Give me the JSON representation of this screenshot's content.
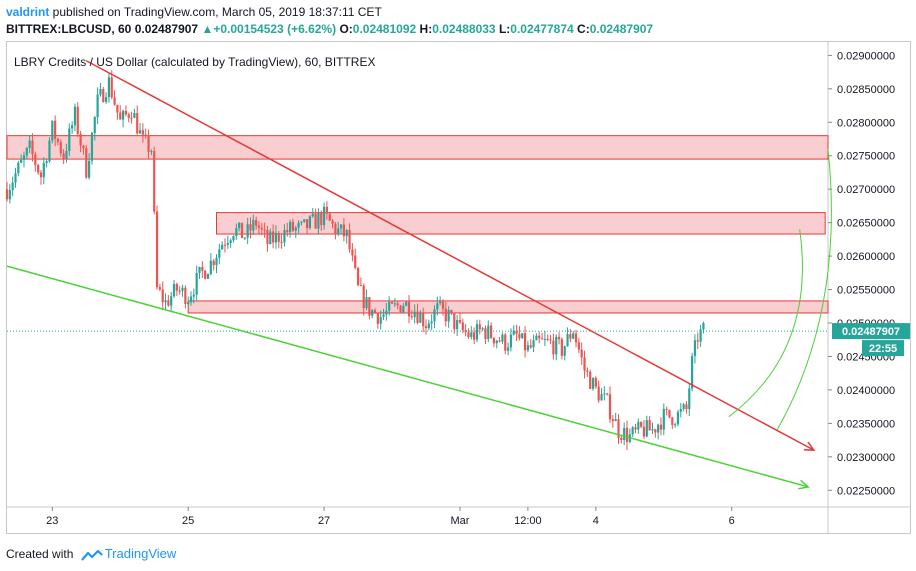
{
  "header": {
    "author": "valdrint",
    "published_text": " published on TradingView.com, March 05, 2019 18:37:11 CET",
    "symbol": "BITTREX:LBCUSD, 60",
    "last": "0.02487907",
    "change": "+0.00154523 (+6.62%)",
    "open_label": "O:",
    "open": "0.02481092",
    "high_label": "H:",
    "high": "0.02488033",
    "low_label": "L:",
    "low": "0.02477874",
    "close_label": "C:",
    "close": "0.02487907"
  },
  "chart_title": "LBRY Credits / US Dollar (calculated by TradingView), 60, BITTREX",
  "footer": {
    "created_with": "Created with",
    "brand": "TradingView"
  },
  "colors": {
    "up": "#26a69a",
    "down": "#ef5350",
    "resistance": "#e53935",
    "support": "#4cd137",
    "zone_fill": "#f8c6c8",
    "accent": "#2196f3"
  },
  "chart_data": {
    "type": "candlestick",
    "y_range": [
      0.02225,
      0.0292
    ],
    "y_ticks": [
      "0.02250000",
      "0.02300000",
      "0.02350000",
      "0.02400000",
      "0.02450000",
      "0.02500000",
      "0.02550000",
      "0.02600000",
      "0.02650000",
      "0.02700000",
      "0.02750000",
      "0.02800000",
      "0.02850000",
      "0.02900000"
    ],
    "x_ticks": [
      {
        "label": "23",
        "t": 48
      },
      {
        "label": "25",
        "t": 96
      },
      {
        "label": "27",
        "t": 144
      },
      {
        "label": "Mar",
        "t": 192
      },
      {
        "label": "12:00",
        "t": 216
      },
      {
        "label": "4",
        "t": 240
      },
      {
        "label": "6",
        "t": 288
      }
    ],
    "t_range": [
      32,
      322
    ],
    "last_price_label": "0.02487907",
    "countdown_label": "22:55",
    "last_price": 0.02487907,
    "keypoints": [
      [
        32,
        0.027
      ],
      [
        36,
        0.0273
      ],
      [
        40,
        0.0276
      ],
      [
        44,
        0.0272
      ],
      [
        48,
        0.0279
      ],
      [
        52,
        0.0275
      ],
      [
        56,
        0.0281
      ],
      [
        60,
        0.0273
      ],
      [
        64,
        0.0283
      ],
      [
        68,
        0.0286
      ],
      [
        72,
        0.028
      ],
      [
        76,
        0.0282
      ],
      [
        80,
        0.0277
      ],
      [
        83,
        0.0276
      ],
      [
        85,
        0.0255
      ],
      [
        88,
        0.0253
      ],
      [
        92,
        0.0255
      ],
      [
        96,
        0.0254
      ],
      [
        100,
        0.0257
      ],
      [
        104,
        0.0259
      ],
      [
        108,
        0.0262
      ],
      [
        112,
        0.0264
      ],
      [
        116,
        0.0263
      ],
      [
        120,
        0.0265
      ],
      [
        124,
        0.0262
      ],
      [
        128,
        0.0263
      ],
      [
        132,
        0.0264
      ],
      [
        136,
        0.0264
      ],
      [
        140,
        0.0265
      ],
      [
        144,
        0.0266
      ],
      [
        148,
        0.0264
      ],
      [
        152,
        0.0263
      ],
      [
        156,
        0.0255
      ],
      [
        160,
        0.0252
      ],
      [
        164,
        0.0251
      ],
      [
        168,
        0.0252
      ],
      [
        172,
        0.0253
      ],
      [
        176,
        0.0252
      ],
      [
        180,
        0.025
      ],
      [
        184,
        0.0252
      ],
      [
        188,
        0.0251
      ],
      [
        192,
        0.0249
      ],
      [
        196,
        0.0248
      ],
      [
        200,
        0.0249
      ],
      [
        204,
        0.0248
      ],
      [
        208,
        0.0247
      ],
      [
        212,
        0.0248
      ],
      [
        216,
        0.0246
      ],
      [
        220,
        0.0247
      ],
      [
        224,
        0.0247
      ],
      [
        228,
        0.0246
      ],
      [
        232,
        0.0249
      ],
      [
        236,
        0.0243
      ],
      [
        240,
        0.024
      ],
      [
        244,
        0.0238
      ],
      [
        248,
        0.0234
      ],
      [
        252,
        0.0233
      ],
      [
        256,
        0.0234
      ],
      [
        260,
        0.0234
      ],
      [
        264,
        0.0236
      ],
      [
        268,
        0.0236
      ],
      [
        272,
        0.0237
      ],
      [
        274,
        0.0244
      ],
      [
        276,
        0.0248
      ],
      [
        278,
        0.02488
      ]
    ],
    "zones": [
      {
        "t1": 32,
        "t2": 322,
        "y1": 0.02745,
        "y2": 0.0278
      },
      {
        "t1": 106,
        "t2": 321,
        "y1": 0.02633,
        "y2": 0.02665
      },
      {
        "t1": 96,
        "t2": 322,
        "y1": 0.02515,
        "y2": 0.02533
      }
    ],
    "trendlines": [
      {
        "name": "resistance",
        "t1": 60,
        "y1": 0.02892,
        "t2": 317,
        "y2": 0.0231,
        "color": "#e53935",
        "arrow": true
      },
      {
        "name": "support",
        "t1": 32,
        "y1": 0.02585,
        "t2": 315,
        "y2": 0.02255,
        "color": "#4cd137",
        "arrow": true
      }
    ],
    "projection_arcs": [
      {
        "from_t": 287,
        "from_y": 0.0236,
        "via_t": 318,
        "via_y": 0.0246,
        "to_t": 312,
        "to_y": 0.0264,
        "color": "#4cd137"
      },
      {
        "from_t": 304,
        "from_y": 0.0234,
        "via_t": 328,
        "via_y": 0.0252,
        "to_t": 322,
        "to_y": 0.0276,
        "color": "#4cd137"
      }
    ]
  }
}
